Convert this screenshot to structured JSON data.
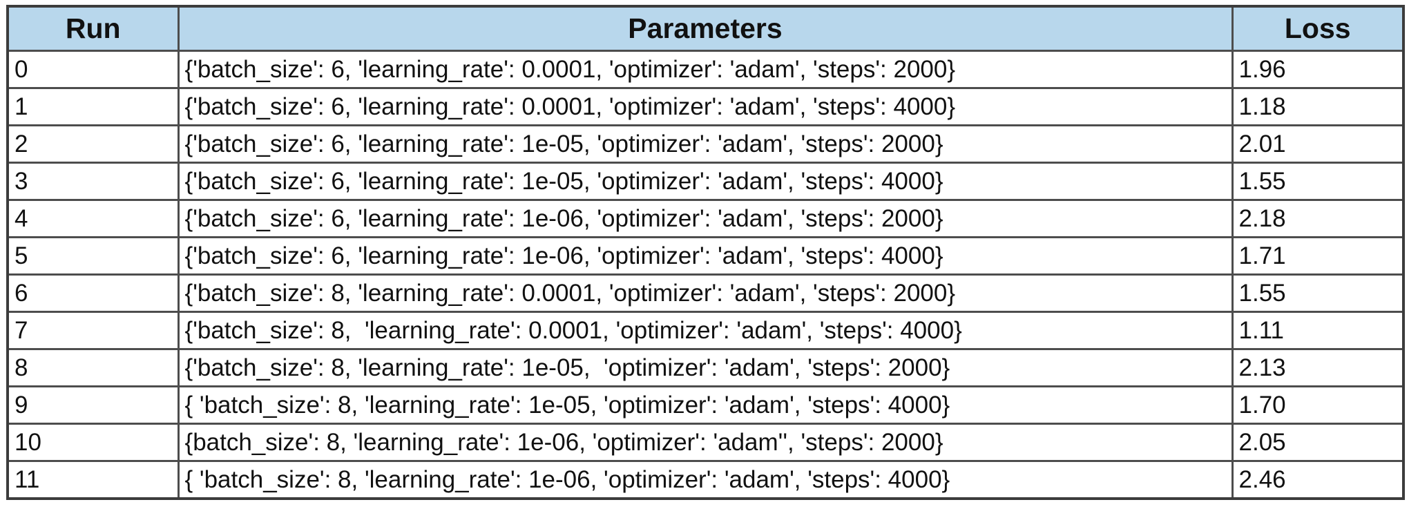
{
  "columns": [
    "Run",
    "Parameters",
    "Loss"
  ],
  "header_bg": "#b8d7ec",
  "border_color": "#4d4d4d",
  "rows": [
    {
      "run": "0",
      "params": "{'batch_size': 6, 'learning_rate': 0.0001, 'optimizer': 'adam', 'steps': 2000}",
      "loss": "1.96"
    },
    {
      "run": "1",
      "params": "{'batch_size': 6, 'learning_rate': 0.0001, 'optimizer': 'adam', 'steps': 4000}",
      "loss": "1.18"
    },
    {
      "run": "2",
      "params": "{'batch_size': 6, 'learning_rate': 1e-05, 'optimizer': 'adam', 'steps': 2000}",
      "loss": "2.01"
    },
    {
      "run": "3",
      "params": "{'batch_size': 6, 'learning_rate': 1e-05, 'optimizer': 'adam', 'steps': 4000}",
      "loss": "1.55"
    },
    {
      "run": "4",
      "params": "{'batch_size': 6, 'learning_rate': 1e-06, 'optimizer': 'adam', 'steps': 2000}",
      "loss": "2.18"
    },
    {
      "run": "5",
      "params": "{'batch_size': 6, 'learning_rate': 1e-06, 'optimizer': 'adam', 'steps': 4000}",
      "loss": "1.71"
    },
    {
      "run": "6",
      "params": "{'batch_size': 8, 'learning_rate': 0.0001, 'optimizer': 'adam', 'steps': 2000}",
      "loss": "1.55"
    },
    {
      "run": "7",
      "params": "{'batch_size': 8,  'learning_rate': 0.0001, 'optimizer': 'adam', 'steps': 4000}",
      "loss": "1.11"
    },
    {
      "run": "8",
      "params": "{'batch_size': 8, 'learning_rate': 1e-05,  'optimizer': 'adam', 'steps': 2000}",
      "loss": "2.13"
    },
    {
      "run": "9",
      "params": "{ 'batch_size': 8, 'learning_rate': 1e-05, 'optimizer': 'adam', 'steps': 4000}",
      "loss": "1.70"
    },
    {
      "run": "10",
      "params": "{batch_size': 8, 'learning_rate': 1e-06, 'optimizer': 'adam'', 'steps': 2000}",
      "loss": "2.05"
    },
    {
      "run": "11",
      "params": "{ 'batch_size': 8, 'learning_rate': 1e-06, 'optimizer': 'adam', 'steps': 4000}",
      "loss": "2.46"
    }
  ]
}
